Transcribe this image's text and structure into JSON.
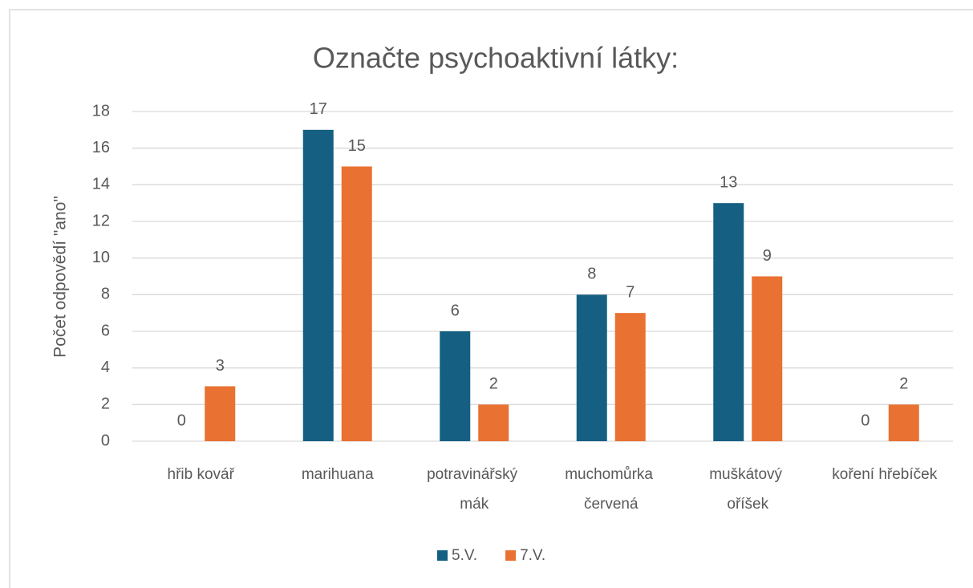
{
  "chart_data": {
    "type": "bar",
    "title": "Označte psychoaktivní látky:",
    "y_label": "Počet odpovědí \"ano\"",
    "categories": [
      "hřib kovář",
      "marihuana",
      "potravinářský mák",
      "muchomůrka červená",
      "muškátový oříšek",
      "koření hřebíček"
    ],
    "series": [
      {
        "name": "5.V.",
        "color": "#156082",
        "values": [
          0,
          17,
          6,
          8,
          13,
          0
        ]
      },
      {
        "name": "7.V.",
        "color": "#e97132",
        "values": [
          3,
          15,
          2,
          7,
          9,
          2
        ]
      }
    ],
    "ylim": [
      0,
      18
    ],
    "yticks": [
      0,
      2,
      4,
      6,
      8,
      10,
      12,
      14,
      16,
      18
    ],
    "grid": true,
    "legend": "bottom"
  }
}
